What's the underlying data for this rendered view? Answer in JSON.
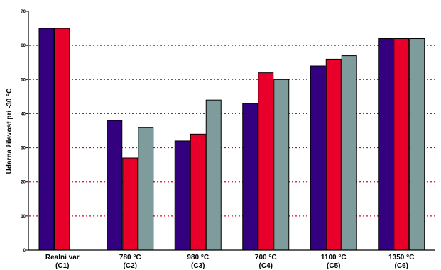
{
  "chart_data": {
    "type": "bar",
    "title": "",
    "xlabel": "",
    "ylabel": "Udarna žilavost pri -30 °C",
    "ylim": [
      0,
      70
    ],
    "yticks": [
      0,
      10,
      20,
      30,
      40,
      50,
      60,
      70
    ],
    "grid": "horizontal dotted",
    "categories": [
      {
        "line1": "Realni var",
        "line2": "(C1)"
      },
      {
        "line1": "780 °C",
        "line2": "(C2)"
      },
      {
        "line1": "980 °C",
        "line2": "(C3)"
      },
      {
        "line1": "700 °C",
        "line2": "(C4)"
      },
      {
        "line1": "1100 °C",
        "line2": "(C5)"
      },
      {
        "line1": "1350 °C",
        "line2": "(C6)"
      }
    ],
    "series": [
      {
        "color": "#330080",
        "values": [
          65,
          38,
          32,
          43,
          54,
          62
        ]
      },
      {
        "color": "#e8002a",
        "values": [
          65,
          27,
          34,
          52,
          56,
          62
        ]
      },
      {
        "color": "#7f9c9c",
        "values": [
          null,
          36,
          44,
          50,
          57,
          62
        ]
      }
    ]
  }
}
